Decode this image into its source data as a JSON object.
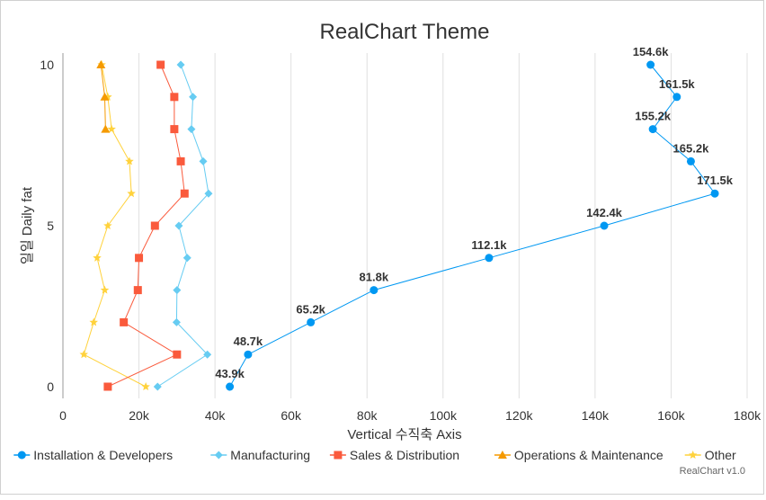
{
  "chart_data": {
    "type": "scatter",
    "title": "RealChart Theme",
    "xlabel": "Vertical 수직축 Axis",
    "ylabel": "일일 Daily fat",
    "xlim": [
      0,
      180000
    ],
    "ylim": [
      0,
      10
    ],
    "x_ticks": [
      0,
      20000,
      40000,
      60000,
      80000,
      100000,
      120000,
      140000,
      160000,
      180000
    ],
    "x_tick_labels": [
      "0",
      "20k",
      "40k",
      "60k",
      "80k",
      "100k",
      "120k",
      "140k",
      "160k",
      "180k"
    ],
    "y_ticks": [
      0,
      5,
      10
    ],
    "y_tick_labels": [
      "0",
      "5",
      "10"
    ],
    "grid": "vertical",
    "legend_position": "bottom",
    "credit": "RealChart v1.0",
    "series": [
      {
        "name": "Installation & Developers",
        "color": "#0098f2",
        "marker": "circle",
        "x": [
          43900,
          48700,
          65200,
          81800,
          112100,
          142400,
          171500,
          165200,
          155200,
          161500,
          154600
        ],
        "y": [
          0,
          1,
          2,
          3,
          4,
          5,
          6,
          7,
          8,
          9,
          10
        ],
        "labels": [
          "43.9k",
          "48.7k",
          "65.2k",
          "81.8k",
          "112.1k",
          "142.4k",
          "171.5k",
          "165.2k",
          "155.2k",
          "161.5k",
          "154.6k"
        ]
      },
      {
        "name": "Manufacturing",
        "color": "#66ccf2",
        "marker": "diamond",
        "x": [
          24900,
          38000,
          29900,
          30000,
          32700,
          30500,
          38300,
          36900,
          33800,
          34200,
          31000
        ],
        "y": [
          0,
          1,
          2,
          3,
          4,
          5,
          6,
          7,
          8,
          9,
          10
        ]
      },
      {
        "name": "Sales & Distribution",
        "color": "#fa5a3c",
        "marker": "square",
        "x": [
          11800,
          30000,
          16000,
          19700,
          20000,
          24200,
          32000,
          31000,
          29300,
          29300,
          25700
        ],
        "y": [
          0,
          1,
          2,
          3,
          4,
          5,
          6,
          7,
          8,
          9,
          10
        ]
      },
      {
        "name": "Operations & Maintenance",
        "color": "#f59a00",
        "marker": "triangle",
        "x": [
          null,
          null,
          null,
          null,
          null,
          null,
          null,
          null,
          11200,
          11000,
          10000
        ],
        "y": [
          0,
          1,
          2,
          3,
          4,
          5,
          6,
          7,
          8,
          9,
          10
        ]
      },
      {
        "name": "Other",
        "color": "#ffd23c",
        "marker": "star",
        "x": [
          21800,
          5500,
          8100,
          11000,
          9000,
          11800,
          18000,
          17500,
          12800,
          11800,
          10200
        ],
        "y": [
          0,
          1,
          2,
          3,
          4,
          5,
          6,
          7,
          8,
          9,
          10
        ]
      }
    ]
  }
}
